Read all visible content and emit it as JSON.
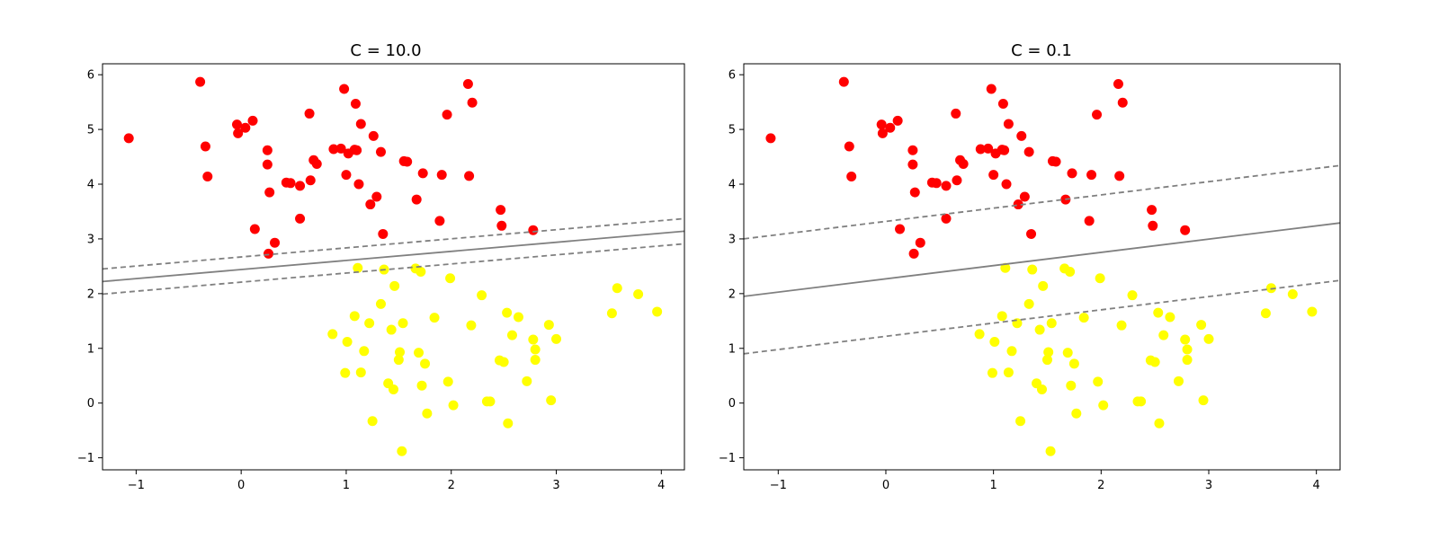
{
  "chart_data": [
    {
      "type": "scatter",
      "title": "C = 10.0",
      "xlabel": "",
      "ylabel": "",
      "xlim": [
        -1.32,
        4.22
      ],
      "ylim": [
        -1.22,
        6.2
      ],
      "xticks": [
        -1,
        0,
        1,
        2,
        3,
        4
      ],
      "yticks": [
        -1,
        0,
        1,
        2,
        3,
        4,
        5,
        6
      ],
      "xtick_labels": [
        "−1",
        "0",
        "1",
        "2",
        "3",
        "4"
      ],
      "ytick_labels": [
        "−1",
        "0",
        "1",
        "2",
        "3",
        "4",
        "5",
        "6"
      ],
      "grid": false,
      "decision_boundary": {
        "slope": 0.166,
        "intercept": 2.44,
        "margin_offset": 0.23,
        "color": "#808080"
      },
      "series": [
        {
          "color": "#ff0000",
          "points": [
            [
              -1.07,
              4.84
            ],
            [
              -0.39,
              5.87
            ],
            [
              -0.34,
              4.69
            ],
            [
              -0.32,
              4.14
            ],
            [
              -0.04,
              5.09
            ],
            [
              -0.03,
              4.93
            ],
            [
              0.04,
              5.03
            ],
            [
              0.11,
              5.16
            ],
            [
              0.13,
              3.18
            ],
            [
              0.25,
              4.62
            ],
            [
              0.25,
              4.36
            ],
            [
              0.26,
              2.73
            ],
            [
              0.27,
              3.85
            ],
            [
              0.32,
              2.93
            ],
            [
              0.43,
              4.03
            ],
            [
              0.47,
              4.02
            ],
            [
              0.56,
              3.97
            ],
            [
              0.56,
              3.37
            ],
            [
              0.65,
              5.29
            ],
            [
              0.66,
              4.07
            ],
            [
              0.69,
              4.44
            ],
            [
              0.72,
              4.37
            ],
            [
              0.88,
              4.64
            ],
            [
              0.95,
              4.65
            ],
            [
              0.98,
              5.74
            ],
            [
              1.0,
              4.17
            ],
            [
              1.02,
              4.56
            ],
            [
              1.08,
              4.63
            ],
            [
              1.09,
              5.47
            ],
            [
              1.1,
              4.62
            ],
            [
              1.12,
              4.0
            ],
            [
              1.14,
              5.1
            ],
            [
              1.23,
              3.63
            ],
            [
              1.26,
              4.88
            ],
            [
              1.29,
              3.77
            ],
            [
              1.33,
              4.59
            ],
            [
              1.35,
              3.09
            ],
            [
              1.55,
              4.42
            ],
            [
              1.58,
              4.41
            ],
            [
              1.67,
              3.72
            ],
            [
              1.73,
              4.2
            ],
            [
              1.89,
              3.33
            ],
            [
              1.91,
              4.17
            ],
            [
              1.96,
              5.27
            ],
            [
              2.16,
              5.83
            ],
            [
              2.17,
              4.15
            ],
            [
              2.2,
              5.49
            ],
            [
              2.47,
              3.53
            ],
            [
              2.48,
              3.24
            ],
            [
              2.78,
              3.16
            ]
          ]
        },
        {
          "color": "#ffff00",
          "points": [
            [
              0.87,
              1.26
            ],
            [
              0.99,
              0.55
            ],
            [
              1.01,
              1.12
            ],
            [
              1.08,
              1.59
            ],
            [
              1.11,
              2.47
            ],
            [
              1.14,
              0.56
            ],
            [
              1.17,
              0.95
            ],
            [
              1.22,
              1.46
            ],
            [
              1.25,
              -0.33
            ],
            [
              1.33,
              1.81
            ],
            [
              1.36,
              2.44
            ],
            [
              1.4,
              0.36
            ],
            [
              1.43,
              1.34
            ],
            [
              1.45,
              0.25
            ],
            [
              1.46,
              2.14
            ],
            [
              1.5,
              0.79
            ],
            [
              1.51,
              0.93
            ],
            [
              1.53,
              -0.88
            ],
            [
              1.54,
              1.46
            ],
            [
              1.66,
              2.46
            ],
            [
              1.69,
              0.92
            ],
            [
              1.71,
              2.4
            ],
            [
              1.72,
              0.32
            ],
            [
              1.75,
              0.72
            ],
            [
              1.77,
              -0.19
            ],
            [
              1.84,
              1.56
            ],
            [
              1.97,
              0.39
            ],
            [
              1.99,
              2.28
            ],
            [
              2.02,
              -0.04
            ],
            [
              2.19,
              1.42
            ],
            [
              2.29,
              1.97
            ],
            [
              2.34,
              0.03
            ],
            [
              2.37,
              0.03
            ],
            [
              2.46,
              0.78
            ],
            [
              2.5,
              0.75
            ],
            [
              2.53,
              1.65
            ],
            [
              2.54,
              -0.37
            ],
            [
              2.58,
              1.24
            ],
            [
              2.64,
              1.57
            ],
            [
              2.72,
              0.4
            ],
            [
              2.78,
              1.16
            ],
            [
              2.8,
              0.98
            ],
            [
              2.8,
              0.79
            ],
            [
              2.93,
              1.43
            ],
            [
              2.95,
              0.05
            ],
            [
              3.0,
              1.17
            ],
            [
              3.53,
              1.64
            ],
            [
              3.58,
              2.1
            ],
            [
              3.78,
              1.99
            ],
            [
              3.96,
              1.67
            ]
          ]
        }
      ]
    },
    {
      "type": "scatter",
      "title": "C = 0.1",
      "xlabel": "",
      "ylabel": "",
      "xlim": [
        -1.32,
        4.22
      ],
      "ylim": [
        -1.22,
        6.2
      ],
      "xticks": [
        -1,
        0,
        1,
        2,
        3,
        4
      ],
      "yticks": [
        -1,
        0,
        1,
        2,
        3,
        4,
        5,
        6
      ],
      "xtick_labels": [
        "−1",
        "0",
        "1",
        "2",
        "3",
        "4"
      ],
      "ytick_labels": [
        "−1",
        "0",
        "1",
        "2",
        "3",
        "4",
        "5",
        "6"
      ],
      "grid": false,
      "decision_boundary": {
        "slope": 0.242,
        "intercept": 2.27,
        "margin_offset": 1.05,
        "color": "#808080"
      },
      "series": [
        {
          "color": "#ff0000",
          "points": [
            [
              -1.07,
              4.84
            ],
            [
              -0.39,
              5.87
            ],
            [
              -0.34,
              4.69
            ],
            [
              -0.32,
              4.14
            ],
            [
              -0.04,
              5.09
            ],
            [
              -0.03,
              4.93
            ],
            [
              0.04,
              5.03
            ],
            [
              0.11,
              5.16
            ],
            [
              0.13,
              3.18
            ],
            [
              0.25,
              4.62
            ],
            [
              0.25,
              4.36
            ],
            [
              0.26,
              2.73
            ],
            [
              0.27,
              3.85
            ],
            [
              0.32,
              2.93
            ],
            [
              0.43,
              4.03
            ],
            [
              0.47,
              4.02
            ],
            [
              0.56,
              3.97
            ],
            [
              0.56,
              3.37
            ],
            [
              0.65,
              5.29
            ],
            [
              0.66,
              4.07
            ],
            [
              0.69,
              4.44
            ],
            [
              0.72,
              4.37
            ],
            [
              0.88,
              4.64
            ],
            [
              0.95,
              4.65
            ],
            [
              0.98,
              5.74
            ],
            [
              1.0,
              4.17
            ],
            [
              1.02,
              4.56
            ],
            [
              1.08,
              4.63
            ],
            [
              1.09,
              5.47
            ],
            [
              1.1,
              4.62
            ],
            [
              1.12,
              4.0
            ],
            [
              1.14,
              5.1
            ],
            [
              1.23,
              3.63
            ],
            [
              1.26,
              4.88
            ],
            [
              1.29,
              3.77
            ],
            [
              1.33,
              4.59
            ],
            [
              1.35,
              3.09
            ],
            [
              1.55,
              4.42
            ],
            [
              1.58,
              4.41
            ],
            [
              1.67,
              3.72
            ],
            [
              1.73,
              4.2
            ],
            [
              1.89,
              3.33
            ],
            [
              1.91,
              4.17
            ],
            [
              1.96,
              5.27
            ],
            [
              2.16,
              5.83
            ],
            [
              2.17,
              4.15
            ],
            [
              2.2,
              5.49
            ],
            [
              2.47,
              3.53
            ],
            [
              2.48,
              3.24
            ],
            [
              2.78,
              3.16
            ]
          ]
        },
        {
          "color": "#ffff00",
          "points": [
            [
              0.87,
              1.26
            ],
            [
              0.99,
              0.55
            ],
            [
              1.01,
              1.12
            ],
            [
              1.08,
              1.59
            ],
            [
              1.11,
              2.47
            ],
            [
              1.14,
              0.56
            ],
            [
              1.17,
              0.95
            ],
            [
              1.22,
              1.46
            ],
            [
              1.25,
              -0.33
            ],
            [
              1.33,
              1.81
            ],
            [
              1.36,
              2.44
            ],
            [
              1.4,
              0.36
            ],
            [
              1.43,
              1.34
            ],
            [
              1.45,
              0.25
            ],
            [
              1.46,
              2.14
            ],
            [
              1.5,
              0.79
            ],
            [
              1.51,
              0.93
            ],
            [
              1.53,
              -0.88
            ],
            [
              1.54,
              1.46
            ],
            [
              1.66,
              2.46
            ],
            [
              1.69,
              0.92
            ],
            [
              1.71,
              2.4
            ],
            [
              1.72,
              0.32
            ],
            [
              1.75,
              0.72
            ],
            [
              1.77,
              -0.19
            ],
            [
              1.84,
              1.56
            ],
            [
              1.97,
              0.39
            ],
            [
              1.99,
              2.28
            ],
            [
              2.02,
              -0.04
            ],
            [
              2.19,
              1.42
            ],
            [
              2.29,
              1.97
            ],
            [
              2.34,
              0.03
            ],
            [
              2.37,
              0.03
            ],
            [
              2.46,
              0.78
            ],
            [
              2.5,
              0.75
            ],
            [
              2.53,
              1.65
            ],
            [
              2.54,
              -0.37
            ],
            [
              2.58,
              1.24
            ],
            [
              2.64,
              1.57
            ],
            [
              2.72,
              0.4
            ],
            [
              2.78,
              1.16
            ],
            [
              2.8,
              0.98
            ],
            [
              2.8,
              0.79
            ],
            [
              2.93,
              1.43
            ],
            [
              2.95,
              0.05
            ],
            [
              3.0,
              1.17
            ],
            [
              3.53,
              1.64
            ],
            [
              3.58,
              2.1
            ],
            [
              3.78,
              1.99
            ],
            [
              3.96,
              1.67
            ]
          ]
        }
      ]
    }
  ]
}
